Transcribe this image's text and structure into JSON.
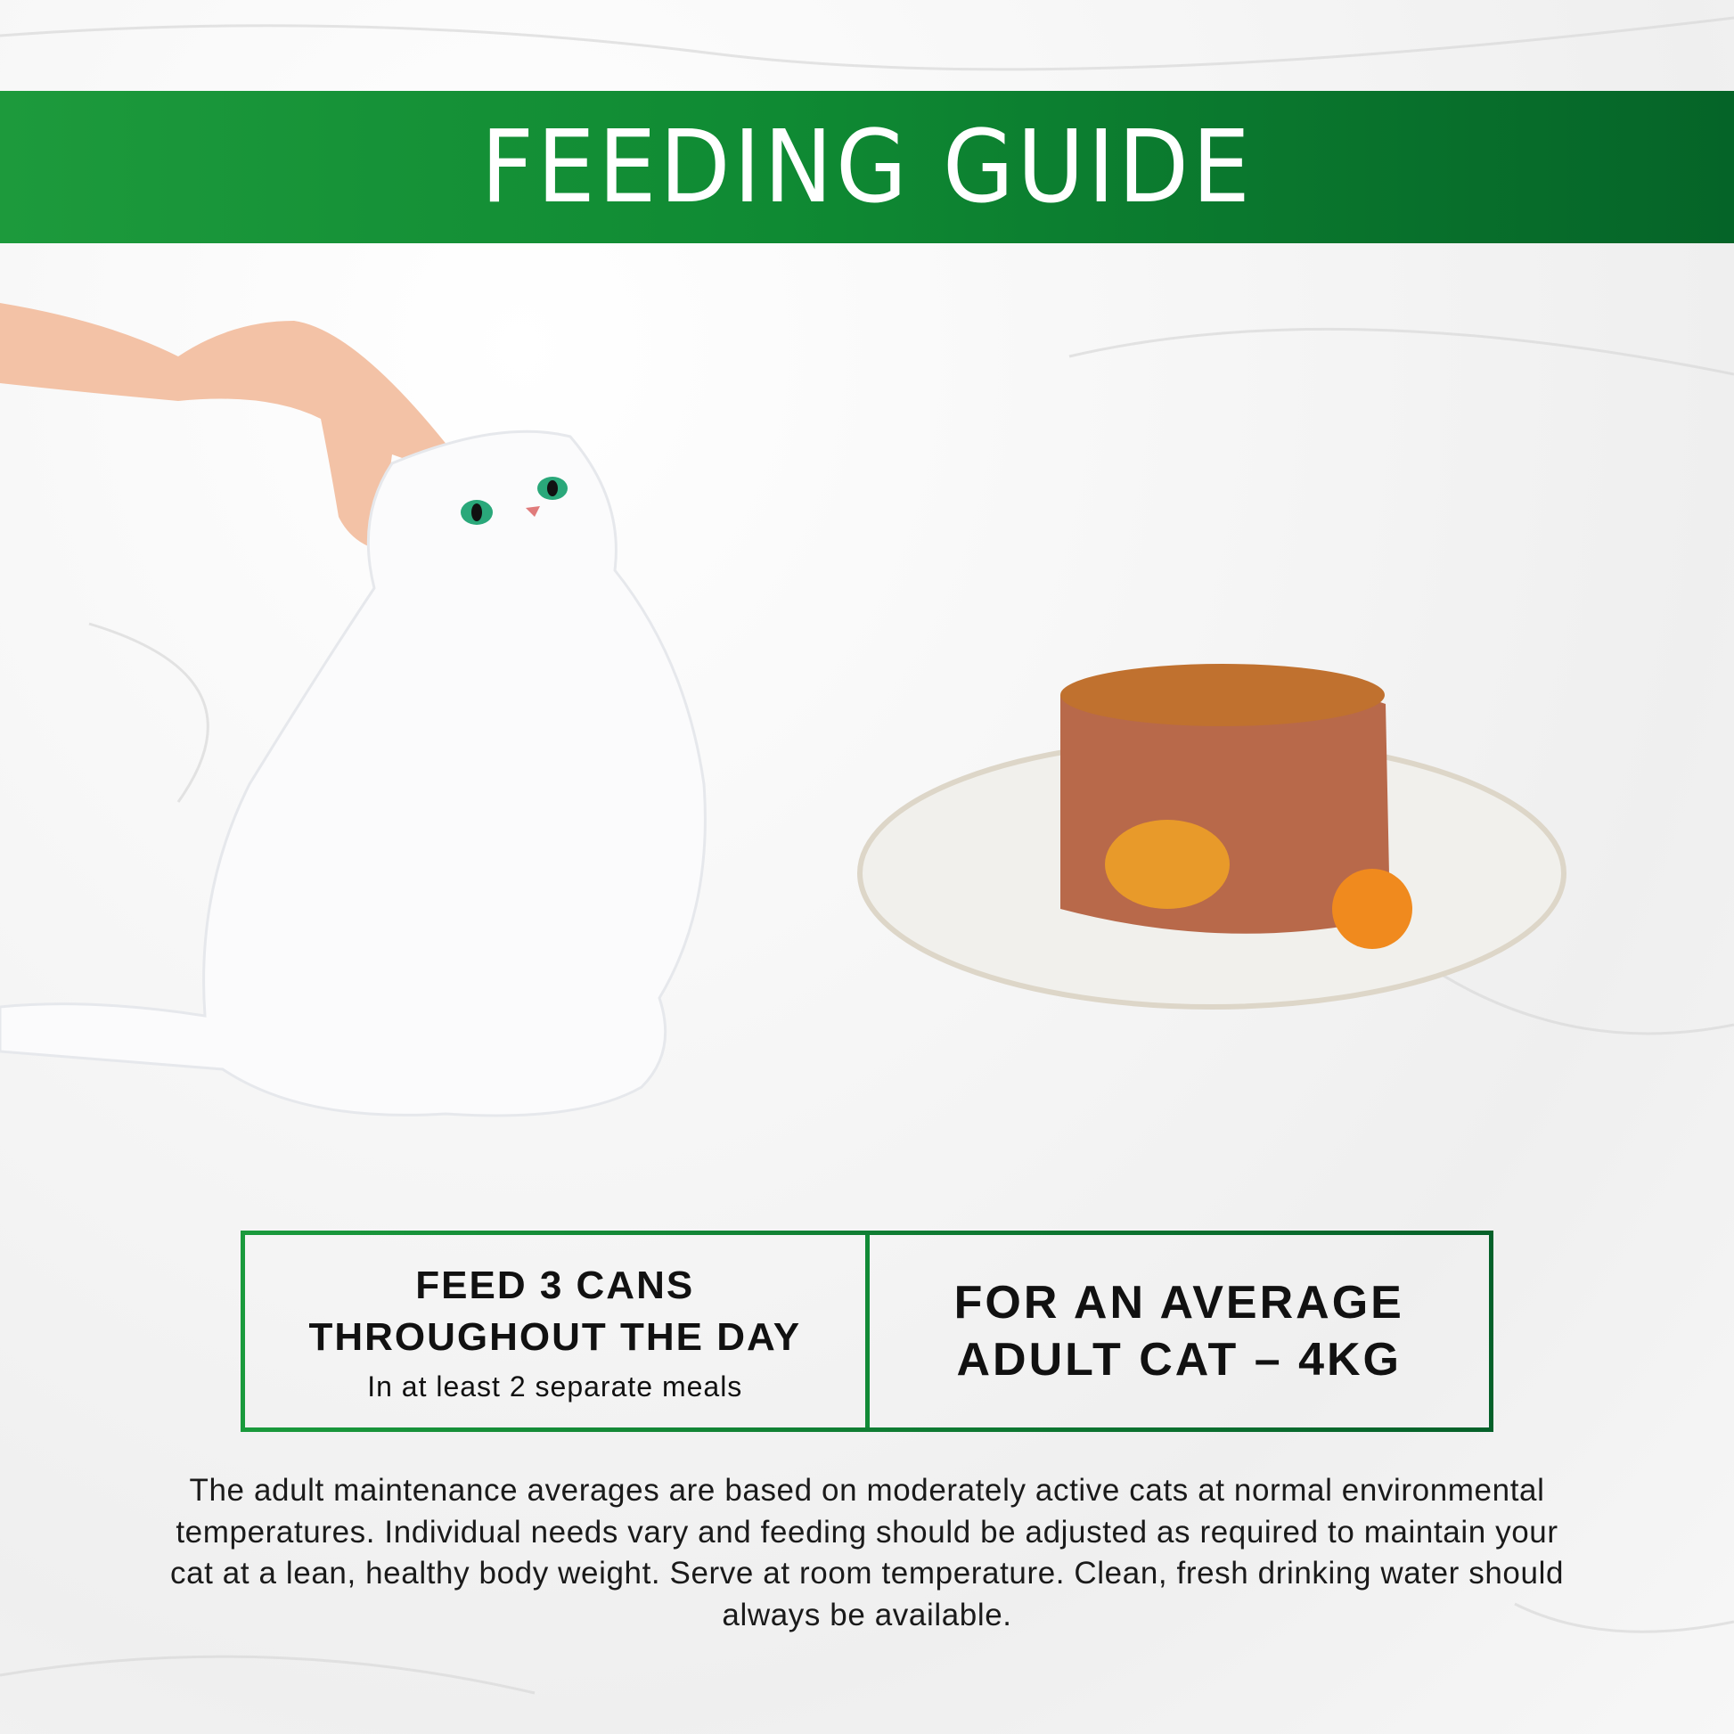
{
  "header": {
    "title": "FEEDING GUIDE"
  },
  "colors": {
    "brand_green": "#118a36",
    "banner_dark": "#05612a",
    "text": "#111111"
  },
  "images": {
    "left": "hand-petting-white-cat",
    "right": "wet-food-on-plate-with-carrot"
  },
  "guide": {
    "left": {
      "line1": "FEED 3 CANS",
      "line2": "THROUGHOUT THE DAY",
      "sub": "In at least 2 separate meals"
    },
    "right": {
      "line1": "FOR AN AVERAGE",
      "line2": "ADULT CAT – 4KG"
    }
  },
  "disclaimer": "The adult maintenance averages are based on moderately active cats at normal environmental temperatures. Individual needs vary and feeding should be adjusted as required to maintain your cat at a lean, healthy body weight. Serve at room temperature. Clean, fresh drinking water should always be available."
}
